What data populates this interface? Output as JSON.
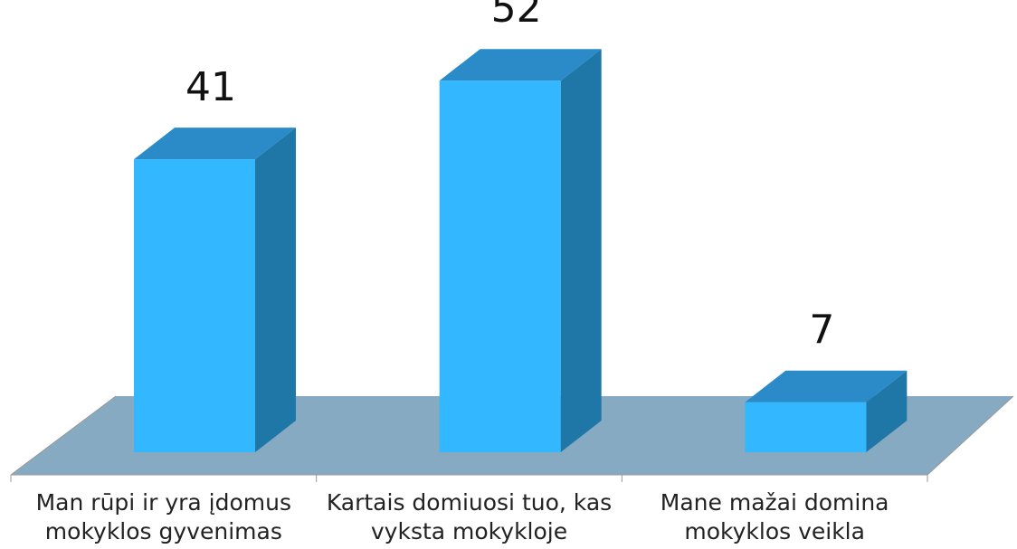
{
  "chart_data": {
    "type": "bar3d",
    "categories": [
      "Man rūpi ir yra įdomus mokyklos gyvenimas",
      "Kartais domiuosi tuo, kas vyksta mokykloje",
      "Mane mažai domina mokyklos veikla"
    ],
    "values": [
      41,
      52,
      7
    ],
    "color": "#33b8ff"
  }
}
